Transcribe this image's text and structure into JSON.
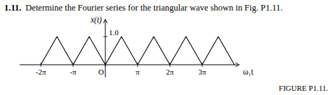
{
  "chart_data": {
    "type": "line",
    "title": "1.11.",
    "subtitle": "Determine the Fourier series for the triangular wave shown in Fig. P1.11.",
    "annotations": [
      "FIGURE P1.11."
    ],
    "xlabel": "ω₁t",
    "ylabel": "x(t)",
    "x": [
      -6.28318,
      -4.71239,
      -3.14159,
      -1.5708,
      0,
      1.5708,
      3.14159,
      4.71239,
      6.28318,
      7.85398,
      9.42478,
      10.99557,
      12.56637
    ],
    "values": [
      0,
      1,
      0,
      1,
      0,
      1,
      0,
      1,
      0,
      1,
      0,
      1,
      0
    ],
    "color": "#000000",
    "xlim": [
      -8.34159,
      13.0
    ],
    "ylim": [
      -0.45,
      1.6
    ],
    "xticks": [
      {
        "value": -6.28318,
        "label": "-2π"
      },
      {
        "value": -3.14159,
        "label": "-π"
      },
      {
        "value": 0,
        "label": "O"
      },
      {
        "value": 3.14159,
        "label": "π"
      },
      {
        "value": 6.28318,
        "label": "2π"
      },
      {
        "value": 9.42478,
        "label": "3π"
      }
    ],
    "yticks": [
      {
        "value": 1,
        "label": "1.0"
      }
    ],
    "grid": false
  }
}
